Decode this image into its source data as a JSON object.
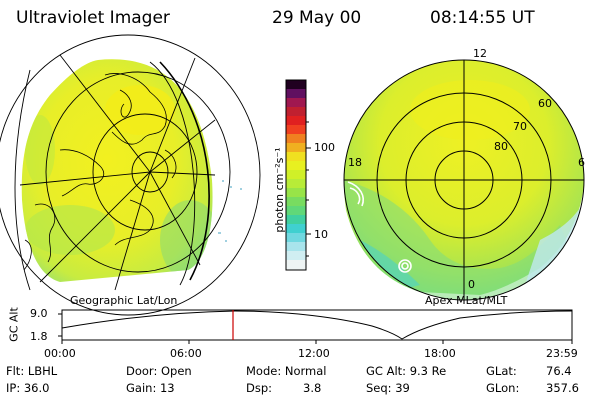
{
  "header": {
    "instrument": "Ultraviolet Imager",
    "date": "29 May 00",
    "time": "08:14:55 UT"
  },
  "left_panel": {
    "caption": "Geographic Lat/Lon"
  },
  "right_panel": {
    "caption": "Apex MLat/MLT",
    "mlt_labels": [
      "12",
      "18",
      "6",
      "0"
    ],
    "lat_labels": [
      "60",
      "70",
      "80"
    ]
  },
  "colorbar": {
    "unit_label": "photon cm⁻²s⁻¹",
    "tick_labels": [
      "100",
      "10"
    ],
    "scale": "log",
    "colors": [
      "#f0f0f0",
      "#c0e8f0",
      "#40d0d8",
      "#80e060",
      "#c0f030",
      "#f0f020",
      "#f0c020",
      "#f08020",
      "#e02020",
      "#c02060",
      "#601060",
      "#200020"
    ]
  },
  "altitude_plot": {
    "ylabel": "GC Alt",
    "y_ticks": [
      "9.0",
      "1.8"
    ],
    "x_ticks": [
      "00:00",
      "06:00",
      "12:00",
      "18:00",
      "23:59"
    ],
    "marker_color": "#cc0000"
  },
  "info": {
    "flt": "Flt: LBHL",
    "ip": "IP: 36.0",
    "door": "Door: Open",
    "gain": "Gain: 13",
    "mode": "Mode: Normal",
    "dsp_label": "Dsp:",
    "dsp_value": "3.8",
    "gcalt": "GC Alt: 9.3 Re",
    "seq": "Seq: 39",
    "glat_label": "GLat:",
    "glat_value": "76.4",
    "glon_label": "GLon:",
    "glon_value": "357.6"
  }
}
